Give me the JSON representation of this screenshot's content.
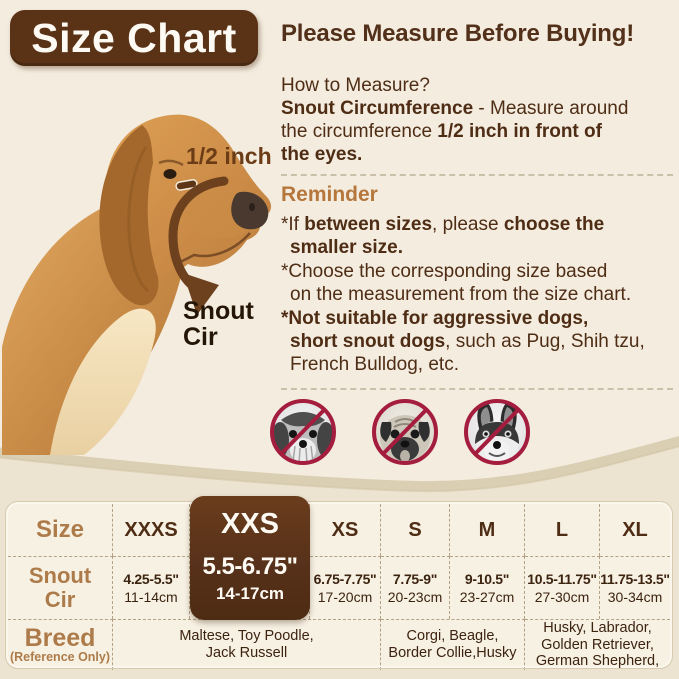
{
  "header": {
    "title": "Size Chart",
    "headline": "Please Measure Before Buying!"
  },
  "figure": {
    "half_inch_label": "1/2 inch",
    "snout_cir_label": "Snout\nCir"
  },
  "how_to": {
    "heading": "How to Measure?",
    "segments": [
      {
        "t": "Snout Circumference",
        "b": 1
      },
      {
        "t": " - Measure around\nthe circumference ",
        "b": 0
      },
      {
        "t": "1/2 inch in front of\nthe eyes.",
        "b": 1
      }
    ]
  },
  "reminder": {
    "heading": "Reminder",
    "bullets": [
      {
        "segments": [
          {
            "t": "*If ",
            "b": 0
          },
          {
            "t": "between sizes",
            "b": 1
          },
          {
            "t": ", please ",
            "b": 0
          },
          {
            "t": "choose the\nsmaller size.",
            "b": 1
          }
        ]
      },
      {
        "segments": [
          {
            "t": "*Choose the corresponding size based\non the measurement from the size chart.",
            "b": 0
          }
        ]
      },
      {
        "segments": [
          {
            "t": "*Not suitable for aggressive dogs,\nshort snout dogs",
            "b": 1
          },
          {
            "t": ", such as Pug, Shih tzu,\nFrench Bulldog, etc.",
            "b": 0
          }
        ]
      }
    ]
  },
  "prohibited_icons": [
    "no-shih-tzu-icon",
    "no-pug-icon",
    "no-french-bulldog-icon"
  ],
  "table": {
    "header": [
      "Size",
      "XXXS",
      "XXS",
      "XS",
      "S",
      "M",
      "L",
      "XL"
    ],
    "highlighted_size": "XXS",
    "snout": {
      "label": "Snout\nCir",
      "cells": [
        {
          "inch": "4.25-5.5\"",
          "cm": "11-14cm"
        },
        {
          "inch": "5.5-6.75\"",
          "cm": "14-17cm"
        },
        {
          "inch": "6.75-7.75\"",
          "cm": "17-20cm"
        },
        {
          "inch": "7.75-9\"",
          "cm": "20-23cm"
        },
        {
          "inch": "9-10.5\"",
          "cm": "23-27cm"
        },
        {
          "inch": "10.5-11.75\"",
          "cm": "27-30cm"
        },
        {
          "inch": "11.75-13.5\"",
          "cm": "30-34cm"
        }
      ]
    },
    "breed": {
      "label": "Breed",
      "sublabel": "(Reference Only)",
      "cells": [
        {
          "text": "Maltese, Toy Poodle,\nJack Russell"
        },
        {
          "text": "Corgi, Beagle,\nBorder Collie,Husky"
        },
        {
          "text": "Husky, Labrador,\nGolden Retriever,\nGerman Shepherd,"
        }
      ]
    }
  },
  "colors": {
    "dark_brown": "#5a3317",
    "text_brown": "#4f2d15",
    "label_tan": "#ad7b4a",
    "reminder_tan": "#b5773c",
    "prohibit_red": "#a51d3e",
    "background_cream": "#f3ecdf",
    "table_cream": "#f7f1e3",
    "arrow_brown": "#6e411e"
  }
}
